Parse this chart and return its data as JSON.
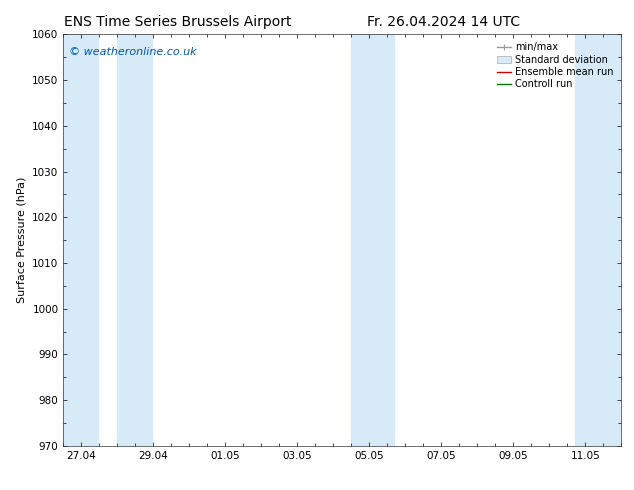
{
  "title_left": "ENS Time Series Brussels Airport",
  "title_right": "Fr. 26.04.2024 14 UTC",
  "ylabel": "Surface Pressure (hPa)",
  "ylim": [
    970,
    1060
  ],
  "yticks": [
    970,
    980,
    990,
    1000,
    1010,
    1020,
    1030,
    1040,
    1050,
    1060
  ],
  "xlim_start": 0,
  "xlim_end": 15.5,
  "xtick_labels": [
    "27.04",
    "29.04",
    "01.05",
    "03.05",
    "05.05",
    "07.05",
    "09.05",
    "11.05"
  ],
  "xtick_positions": [
    0.5,
    2.5,
    4.5,
    6.5,
    8.5,
    10.5,
    12.5,
    14.5
  ],
  "watermark": "© weatheronline.co.uk",
  "watermark_color": "#0055aa",
  "bg_color": "#ffffff",
  "plot_bg_color": "#ffffff",
  "shaded_bands": [
    {
      "x_start": 0.0,
      "x_end": 1.0,
      "color": "#d6eaf8"
    },
    {
      "x_start": 1.5,
      "x_end": 2.5,
      "color": "#d6eaf8"
    },
    {
      "x_start": 8.0,
      "x_end": 9.2,
      "color": "#d6eaf8"
    },
    {
      "x_start": 14.2,
      "x_end": 15.5,
      "color": "#d6eaf8"
    }
  ],
  "legend_entries": [
    {
      "label": "min/max",
      "color": "#aaaaaa",
      "type": "minmax"
    },
    {
      "label": "Standard deviation",
      "color": "#d6eaf8",
      "type": "std"
    },
    {
      "label": "Ensemble mean run",
      "color": "#cc0000",
      "type": "line"
    },
    {
      "label": "Controll run",
      "color": "#007700",
      "type": "line"
    }
  ],
  "font_family": "DejaVu Sans",
  "title_fontsize": 10,
  "axis_label_fontsize": 8,
  "tick_fontsize": 7.5,
  "legend_fontsize": 7,
  "watermark_fontsize": 8
}
